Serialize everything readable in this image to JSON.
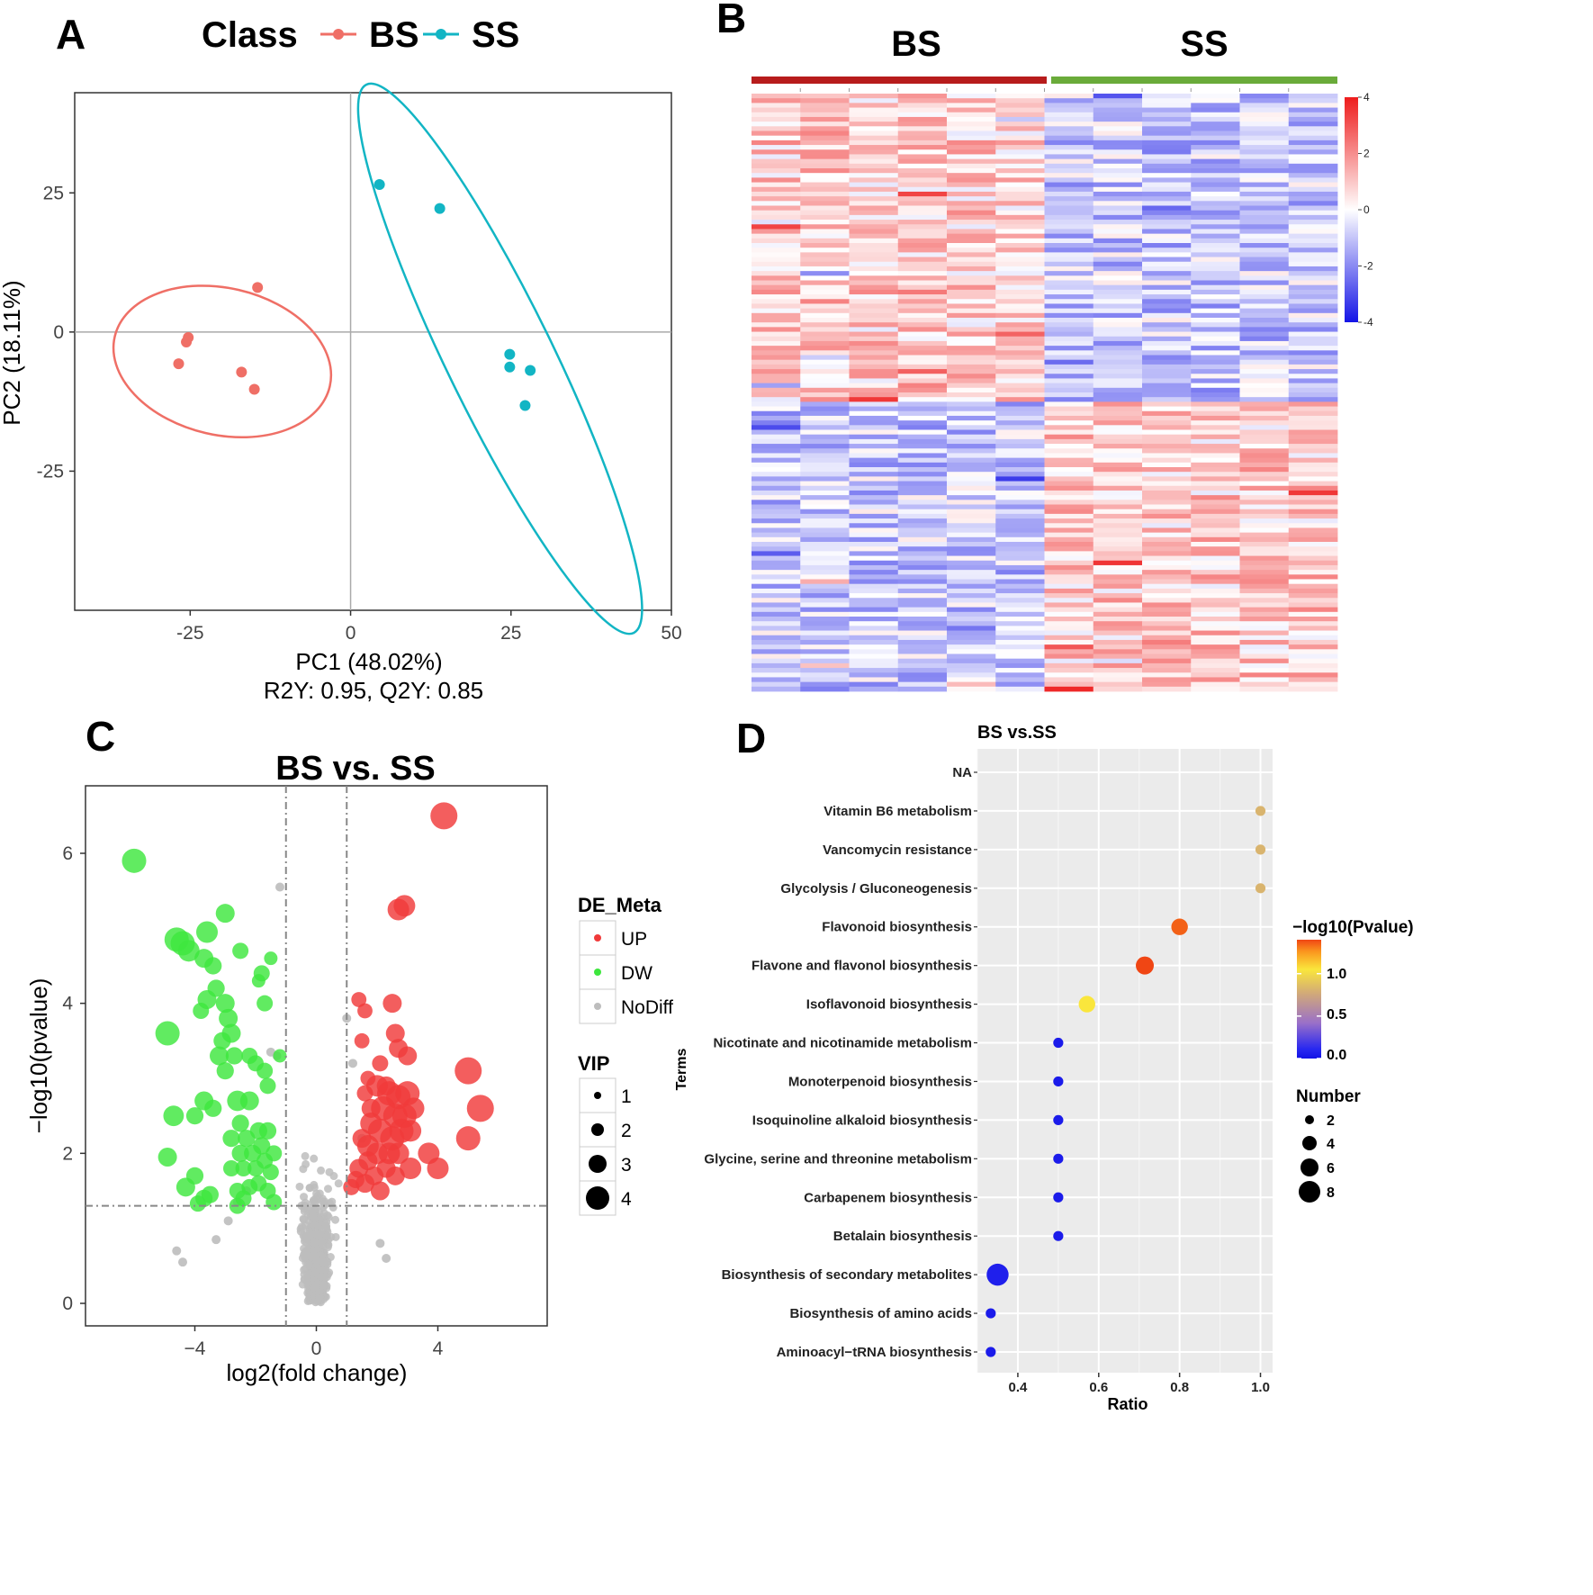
{
  "panels": {
    "A": {
      "letter": "A"
    },
    "B": {
      "letter": "B"
    },
    "C": {
      "letter": "C"
    },
    "D": {
      "letter": "D"
    }
  },
  "colors": {
    "bs": "#ef6f66",
    "ss": "#12b5c4",
    "up": "#f03a3a",
    "dw": "#3ee63e",
    "nodiff": "#bdbdbd",
    "heat_high": "#ee1c1c",
    "heat_mid": "#ffffff",
    "heat_low": "#1414e6",
    "bs_bar": "#b71c1c",
    "ss_bar": "#6aab3a"
  },
  "chart_data": [
    {
      "id": "A",
      "type": "scatter",
      "title": "",
      "legend_title": "Class",
      "legend_position": "top",
      "legend": [
        "BS",
        "SS"
      ],
      "xlabel": "PC1 (48.02%)",
      "ylabel": "PC2 (18.11%)",
      "subtitle": "R2Y: 0.95, Q2Y: 0.85",
      "xlim": [
        -43,
        50
      ],
      "ylim": [
        -50,
        43
      ],
      "xticks": [
        -25,
        0,
        25,
        50
      ],
      "yticks": [
        -25,
        0,
        25
      ],
      "xtick_labels": [
        "-25",
        "0",
        "25",
        "50"
      ],
      "ytick_labels": [
        "-25",
        "0",
        "25"
      ],
      "series": [
        {
          "name": "BS",
          "points": [
            [
              -14.5,
              8
            ],
            [
              -25.3,
              -1
            ],
            [
              -25.6,
              -1.8
            ],
            [
              -26.8,
              -5.7
            ],
            [
              -17,
              -7.2
            ],
            [
              -15,
              -10.3
            ]
          ],
          "ellipse": {
            "cx": -20,
            "cy": -5.3,
            "rx": 17.2,
            "ry": 13.2,
            "angle": 13
          }
        },
        {
          "name": "SS",
          "points": [
            [
              4.5,
              26.5
            ],
            [
              13.9,
              22.2
            ],
            [
              24.8,
              -4
            ],
            [
              24.8,
              -6.3
            ],
            [
              28,
              -6.9
            ],
            [
              27.2,
              -13.2
            ]
          ],
          "ellipse": {
            "cx": 23.3,
            "cy": -4.8,
            "rx": 8.3,
            "ry": 54.8,
            "angle": -26
          }
        }
      ]
    },
    {
      "id": "B",
      "type": "heatmap",
      "groups": [
        "BS",
        "SS"
      ],
      "columns_per_group": 6,
      "rows": 128,
      "colorbar": {
        "min": -4,
        "max": 4,
        "ticks": [
          "4",
          "2",
          "0",
          "-2",
          "-4"
        ]
      }
    },
    {
      "id": "C",
      "type": "scatter",
      "title": "BS vs. SS",
      "xlabel": "log2(fold change)",
      "ylabel": "−log10(pvalue)",
      "xlim": [
        -7.6,
        7.6
      ],
      "ylim": [
        -0.3,
        6.9
      ],
      "xticks": [
        -4,
        0,
        4
      ],
      "yticks": [
        0,
        2,
        4,
        6
      ],
      "xtick_labels": [
        "−4",
        "0",
        "4"
      ],
      "ytick_labels": [
        "0",
        "2",
        "4",
        "6"
      ],
      "thresholds": {
        "x": [
          -1,
          1
        ],
        "y": 1.3
      },
      "legend_DE": {
        "title": "DE_Meta",
        "items": [
          "UP",
          "DW",
          "NoDiff"
        ]
      },
      "legend_VIP": {
        "title": "VIP",
        "items": [
          "1",
          "2",
          "3",
          "4"
        ]
      },
      "series": [
        {
          "name": "UP",
          "points": [
            [
              4.2,
              6.5,
              4
            ],
            [
              2.9,
              5.3,
              3
            ],
            [
              2.7,
              5.25,
              3
            ],
            [
              5,
              3.1,
              4
            ],
            [
              5.4,
              2.6,
              4
            ],
            [
              5,
              2.2,
              3.5
            ],
            [
              3.7,
              2,
              3
            ],
            [
              4,
              1.8,
              3
            ],
            [
              3.1,
              1.8,
              3
            ],
            [
              2.5,
              4,
              2.5
            ],
            [
              2.6,
              3.6,
              2.5
            ],
            [
              2.7,
              3.4,
              2.5
            ],
            [
              3,
              3.3,
              2.5
            ],
            [
              1.4,
              4.05,
              1.8
            ],
            [
              1.6,
              3.9,
              1.8
            ],
            [
              1.5,
              3.5,
              1.8
            ],
            [
              2.1,
              3.2,
              2
            ],
            [
              1.7,
              3.0,
              1.8
            ],
            [
              1.6,
              2.8,
              2
            ],
            [
              2,
              2.9,
              3
            ],
            [
              2.4,
              2.8,
              3.5
            ],
            [
              2.7,
              2.75,
              3.5
            ],
            [
              3.0,
              2.8,
              3.5
            ],
            [
              2.2,
              2.6,
              3.5
            ],
            [
              2.6,
              2.5,
              3.5
            ],
            [
              2.9,
              2.5,
              3.5
            ],
            [
              3.2,
              2.6,
              3
            ],
            [
              1.8,
              2.4,
              3
            ],
            [
              2.1,
              2.3,
              3.5
            ],
            [
              2.5,
              2.2,
              3.5
            ],
            [
              2.8,
              2.3,
              3.5
            ],
            [
              3.1,
              2.3,
              3
            ],
            [
              1.7,
              2.1,
              3
            ],
            [
              2.0,
              2.0,
              3
            ],
            [
              2.4,
              2.0,
              3
            ],
            [
              2.7,
              2.0,
              3
            ],
            [
              1.5,
              2.2,
              2.5
            ],
            [
              1.7,
              1.9,
              2.5
            ],
            [
              2.3,
              1.8,
              2.5
            ],
            [
              2.6,
              1.7,
              2.5
            ],
            [
              1.9,
              1.7,
              2.5
            ],
            [
              1.4,
              1.8,
              2.5
            ],
            [
              1.6,
              1.6,
              2.5
            ],
            [
              2.1,
              1.5,
              2.5
            ],
            [
              1.3,
              1.65,
              2.2
            ],
            [
              1.15,
              1.55,
              2
            ],
            [
              1.8,
              2.6,
              2.5
            ],
            [
              2.3,
              2.9,
              2.5
            ]
          ]
        },
        {
          "name": "DW",
          "points": [
            [
              -6,
              5.9,
              3.5
            ],
            [
              -4.6,
              4.85,
              3.5
            ],
            [
              -4.4,
              4.8,
              3.5
            ],
            [
              -4.2,
              4.7,
              3
            ],
            [
              -3.6,
              4.95,
              3
            ],
            [
              -3.0,
              5.2,
              2.5
            ],
            [
              -3.7,
              4.6,
              2.5
            ],
            [
              -2.5,
              4.7,
              2
            ],
            [
              -1.8,
              4.4,
              2
            ],
            [
              -1.5,
              4.6,
              1.5
            ],
            [
              -1.9,
              4.3,
              1.5
            ],
            [
              -3.4,
              4.5,
              2.2
            ],
            [
              -3.3,
              4.2,
              2.2
            ],
            [
              -3.6,
              4.05,
              2.5
            ],
            [
              -3.0,
              4.0,
              2.5
            ],
            [
              -2.9,
              3.8,
              2.5
            ],
            [
              -2.8,
              3.6,
              2.5
            ],
            [
              -3.1,
              3.5,
              2.2
            ],
            [
              -3.8,
              3.9,
              2
            ],
            [
              -1.7,
              4.0,
              2
            ],
            [
              -4.9,
              3.6,
              3.5
            ],
            [
              -3.2,
              3.3,
              2.5
            ],
            [
              -2.7,
              3.3,
              2.2
            ],
            [
              -2.2,
              3.3,
              2
            ],
            [
              -2.0,
              3.2,
              2
            ],
            [
              -1.7,
              3.1,
              2
            ],
            [
              -1.6,
              2.9,
              2
            ],
            [
              -1.2,
              3.3,
              1.5
            ],
            [
              -3.0,
              3.1,
              2.2
            ],
            [
              -4.7,
              2.5,
              2.8
            ],
            [
              -3.7,
              2.7,
              2.5
            ],
            [
              -3.4,
              2.6,
              2.2
            ],
            [
              -2.6,
              2.7,
              2.8
            ],
            [
              -2.2,
              2.7,
              2.5
            ],
            [
              -2.5,
              2.4,
              2.2
            ],
            [
              -2.8,
              2.2,
              2.2
            ],
            [
              -2.3,
              2.2,
              2.2
            ],
            [
              -1.9,
              2.3,
              2.2
            ],
            [
              -1.6,
              2.3,
              2.2
            ],
            [
              -1.8,
              2.1,
              2.2
            ],
            [
              -2.1,
              2.0,
              2.2
            ],
            [
              -2.5,
              2.0,
              2.2
            ],
            [
              -1.4,
              2.0,
              2
            ],
            [
              -1.7,
              1.9,
              2
            ],
            [
              -2.0,
              1.8,
              2
            ],
            [
              -2.4,
              1.8,
              2
            ],
            [
              -2.8,
              1.8,
              2
            ],
            [
              -1.5,
              1.75,
              2
            ],
            [
              -4.0,
              2.5,
              2.2
            ],
            [
              -4.0,
              1.7,
              2.2
            ],
            [
              -4.9,
              1.95,
              2.5
            ],
            [
              -4.3,
              1.55,
              2.5
            ],
            [
              -3.7,
              1.4,
              2.2
            ],
            [
              -3.5,
              1.45,
              2.2
            ],
            [
              -2.6,
              1.5,
              2
            ],
            [
              -2.4,
              1.4,
              2
            ],
            [
              -2.2,
              1.55,
              2
            ],
            [
              -1.9,
              1.6,
              2
            ],
            [
              -1.6,
              1.5,
              2
            ],
            [
              -1.4,
              1.35,
              2
            ],
            [
              -2.6,
              1.3,
              2
            ],
            [
              -3.9,
              1.33,
              2
            ]
          ]
        }
      ]
    },
    {
      "id": "D",
      "type": "scatter",
      "title": "BS vs.SS",
      "xlabel": "Ratio",
      "ylabel": "Terms",
      "xlim": [
        0.3,
        1.03
      ],
      "xticks": [
        0.4,
        0.6,
        0.8,
        1.0
      ],
      "xtick_labels": [
        "0.4",
        "0.6",
        "0.8",
        "1.0"
      ],
      "color_legend": {
        "title": "−log10(Pvalue)",
        "ticks": [
          "1.0",
          "0.5",
          "0.0"
        ],
        "min": 0,
        "max": 1.4
      },
      "size_legend": {
        "title": "Number",
        "items": [
          "2",
          "4",
          "6",
          "8"
        ]
      },
      "categories": [
        "NA",
        "Vitamin B6 metabolism",
        "Vancomycin resistance",
        "Glycolysis / Gluconeogenesis",
        "Flavonoid biosynthesis",
        "Flavone and flavonol biosynthesis",
        "Isoflavonoid biosynthesis",
        "Nicotinate and nicotinamide metabolism",
        "Monoterpenoid biosynthesis",
        "Isoquinoline alkaloid biosynthesis",
        "Glycine, serine and threonine metabolism",
        "Carbapenem biosynthesis",
        "Betalain biosynthesis",
        "Biosynthesis of secondary metabolites",
        "Biosynthesis of amino acids",
        "Aminoacyl−tRNA biosynthesis"
      ],
      "ratio": [
        null,
        1.0,
        1.0,
        1.0,
        0.8,
        0.714,
        0.571,
        0.5,
        0.5,
        0.5,
        0.5,
        0.5,
        0.5,
        0.35,
        0.333,
        0.333
      ],
      "number": [
        null,
        1,
        1,
        1,
        4,
        5,
        4,
        1,
        1,
        1,
        1,
        1,
        1,
        8,
        1,
        1
      ],
      "pvalue": [
        null,
        0.6,
        0.6,
        0.6,
        1.3,
        1.4,
        0.85,
        0.02,
        0.02,
        0.02,
        0.02,
        0.02,
        0.02,
        0.03,
        0.02,
        0.02
      ]
    }
  ]
}
